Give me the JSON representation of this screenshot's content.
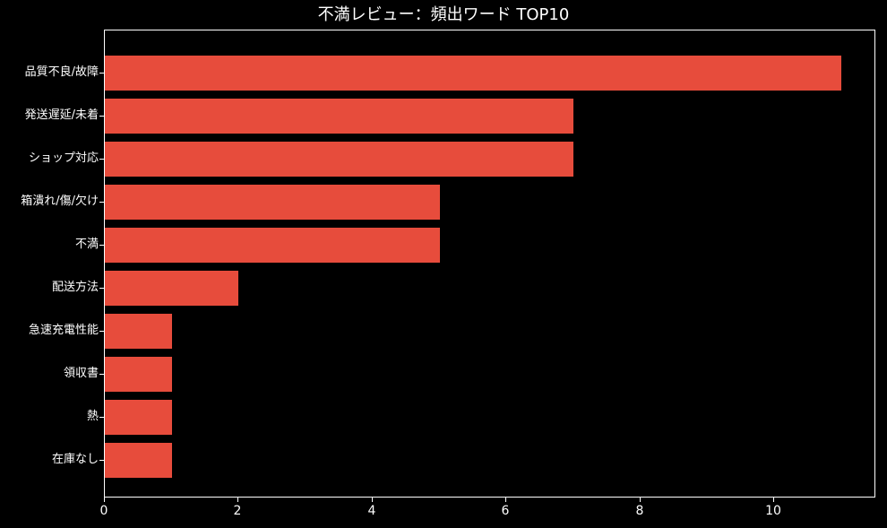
{
  "chart_data": {
    "type": "bar",
    "orientation": "horizontal",
    "title": "不満レビュー：頻出ワード TOP10",
    "categories": [
      "品質不良/故障",
      "発送遅延/未着",
      "ショップ対応",
      "箱潰れ/傷/欠け",
      "不満",
      "配送方法",
      "急速充電性能",
      "領収書",
      "熱",
      "在庫なし"
    ],
    "values": [
      11,
      7,
      7,
      5,
      5,
      2,
      1,
      1,
      1,
      1
    ],
    "xlabel": "",
    "ylabel": "",
    "xticks": [
      "0",
      "2",
      "4",
      "6",
      "8",
      "10"
    ],
    "xtick_values": [
      0,
      2,
      4,
      6,
      8,
      10
    ],
    "xlim": [
      0,
      11.52
    ],
    "grid": false,
    "legend": false,
    "bar_color": "#e74c3c",
    "background_color": "#000000",
    "text_color": "#ffffff",
    "spine_color": "#ffffff"
  }
}
